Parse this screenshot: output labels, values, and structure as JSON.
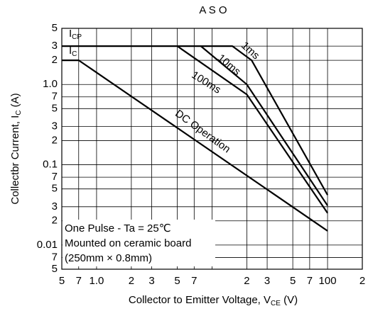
{
  "chart_data": {
    "type": "line",
    "title": "A S O",
    "xlabel": [
      "Collector to Emitter Voltage, V",
      "CE",
      " (V)"
    ],
    "ylabel": [
      "Collectbr Current, I",
      "C",
      " (A)"
    ],
    "xscale": "log",
    "yscale": "log",
    "grid": true,
    "color": "#000000",
    "xlim": [
      0.5,
      200
    ],
    "ylim": [
      0.005,
      5
    ],
    "xticks": [
      {
        "value": 0.5,
        "label": "5"
      },
      {
        "value": 0.7,
        "label": "7"
      },
      {
        "value": 1,
        "label": "1.0"
      },
      2,
      3,
      5,
      7,
      {
        "value": 20,
        "label": "2"
      },
      {
        "value": 30,
        "label": "3"
      },
      {
        "value": 50,
        "label": "5"
      },
      {
        "value": 70,
        "label": "7"
      },
      100,
      {
        "value": 200,
        "label": "2"
      }
    ],
    "xgrid_unlabeled": [
      10
    ],
    "yticks": [
      5,
      3,
      2,
      {
        "value": 1,
        "label": "1.0"
      },
      {
        "value": 0.7,
        "label": "7"
      },
      {
        "value": 0.5,
        "label": "5"
      },
      {
        "value": 0.3,
        "label": "3"
      },
      {
        "value": 0.2,
        "label": "2"
      },
      0.1,
      {
        "value": 0.07,
        "label": "7"
      },
      {
        "value": 0.05,
        "label": "5"
      },
      {
        "value": 0.03,
        "label": "3"
      },
      {
        "value": 0.02,
        "label": "2"
      },
      0.01,
      {
        "value": 0.007,
        "label": "7"
      },
      {
        "value": 0.005,
        "label": "5"
      }
    ],
    "series": [
      {
        "name": "1ms",
        "x": [
          0.5,
          15,
          22,
          100
        ],
        "values": [
          3,
          3,
          2,
          0.042
        ]
      },
      {
        "name": "10ms",
        "x": [
          8,
          20,
          100
        ],
        "values": [
          3,
          1.0,
          0.031
        ]
      },
      {
        "name": "100ms",
        "x": [
          5,
          20,
          100
        ],
        "values": [
          3,
          0.75,
          0.025
        ]
      },
      {
        "name": "DC Operation",
        "x": [
          0.5,
          0.7,
          100
        ],
        "values": [
          2,
          2,
          0.015
        ]
      }
    ],
    "annotations": [
      [
        "I",
        "CP"
      ],
      [
        "I",
        "C"
      ]
    ],
    "notes": [
      "One Pulse - Ta = 25℃",
      "Mounted on ceramic board",
      "(250mm × 0.8mm)"
    ]
  }
}
